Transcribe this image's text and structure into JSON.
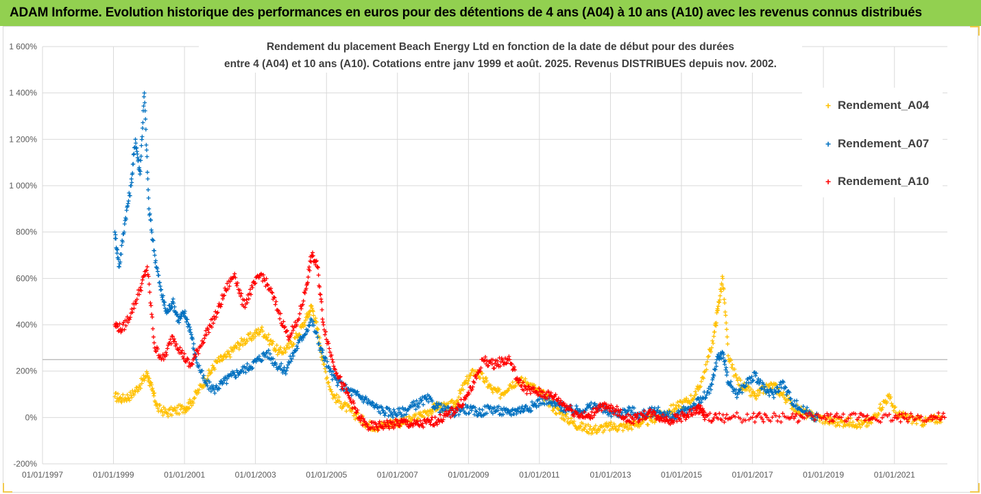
{
  "banner": {
    "text": "ADAM Informe. Evolution historique des performances en euros pour des détentions de 4 ans (A04) à 10 ans (A10) avec les revenus connus distribués"
  },
  "colors": {
    "banner_bg": "#92d050",
    "A04": "#ffc000",
    "A07": "#0070c0",
    "A10": "#ff0000",
    "grid": "#d9d9d9",
    "text": "#595959"
  },
  "chart_data": {
    "type": "scatter",
    "title_lines": [
      "Rendement du placement Beach Energy Ltd en fonction de la date de début pour des durées",
      "entre 4 (A04) et 10 ans (A10). Cotations entre janv 1999 et août. 2025. Revenus DISTRIBUES depuis nov. 2002."
    ],
    "xlabel": "",
    "ylabel": "",
    "xlim": [
      "1997-01-01",
      "2022-06-30"
    ],
    "ylim": [
      -200,
      1600
    ],
    "y_ticks": [
      -200,
      0,
      200,
      400,
      600,
      800,
      1000,
      1200,
      1400,
      1600
    ],
    "y_tick_labels": [
      "-200%",
      "0%",
      "200%",
      "400%",
      "600%",
      "800%",
      "1 000%",
      "1 200%",
      "1 400%",
      "1 600%"
    ],
    "x_ticks": [
      "1997-01-01",
      "1999-01-01",
      "2001-01-01",
      "2003-01-01",
      "2005-01-01",
      "2007-01-01",
      "2009-01-01",
      "2011-01-01",
      "2013-01-01",
      "2015-01-01",
      "2017-01-01",
      "2019-01-01",
      "2021-01-01"
    ],
    "x_tick_labels": [
      "01/01/1997",
      "01/01/1999",
      "01/01/2001",
      "01/01/2003",
      "01/01/2005",
      "01/01/2007",
      "01/01/2009",
      "01/01/2011",
      "01/01/2013",
      "01/01/2015",
      "01/01/2017",
      "01/01/2019",
      "01/01/2021"
    ],
    "reference_line_y": 250,
    "grid": true,
    "legend_position": "top-right",
    "marker": "+",
    "series": [
      {
        "name": "Rendement_A04",
        "color": "#ffc000",
        "x": [
          "1999-01-15",
          "1999-04-01",
          "1999-07-01",
          "1999-10-01",
          "1999-12-15",
          "2000-02-01",
          "2000-04-01",
          "2000-07-01",
          "2000-10-01",
          "2001-01-01",
          "2001-03-01",
          "2001-06-01",
          "2001-09-01",
          "2001-12-01",
          "2002-03-01",
          "2002-06-01",
          "2002-09-01",
          "2002-12-01",
          "2003-03-01",
          "2003-06-01",
          "2003-09-01",
          "2003-12-01",
          "2004-03-01",
          "2004-06-01",
          "2004-08-01",
          "2004-10-01",
          "2004-12-01",
          "2005-03-01",
          "2005-06-01",
          "2005-09-01",
          "2005-12-01",
          "2006-03-01",
          "2006-06-01",
          "2006-09-01",
          "2006-12-01",
          "2007-03-01",
          "2007-06-01",
          "2007-09-01",
          "2007-12-01",
          "2008-03-01",
          "2008-06-01",
          "2008-09-01",
          "2008-12-01",
          "2009-03-01",
          "2009-06-01",
          "2009-09-01",
          "2009-12-01",
          "2010-03-01",
          "2010-06-01",
          "2010-09-01",
          "2010-12-01",
          "2011-03-01",
          "2011-06-01",
          "2011-09-01",
          "2011-12-01",
          "2012-03-01",
          "2012-06-01",
          "2012-09-01",
          "2012-12-01",
          "2013-03-01",
          "2013-06-01",
          "2013-09-01",
          "2013-12-01",
          "2014-03-01",
          "2014-06-01",
          "2014-09-01",
          "2014-12-01",
          "2015-03-01",
          "2015-06-01",
          "2015-09-01",
          "2015-12-01",
          "2016-01-15",
          "2016-03-01",
          "2016-05-01",
          "2016-08-01",
          "2016-11-01",
          "2017-02-01",
          "2017-05-01",
          "2017-08-01",
          "2017-11-01",
          "2018-02-01",
          "2018-05-01",
          "2018-08-01",
          "2018-11-01",
          "2019-02-01",
          "2019-05-01",
          "2019-08-01",
          "2019-11-01",
          "2020-02-01",
          "2020-05-01",
          "2020-08-01",
          "2020-11-01",
          "2021-02-01",
          "2021-05-01",
          "2021-08-01",
          "2021-11-01",
          "2022-02-01",
          "2022-05-01"
        ],
        "y": [
          90,
          80,
          95,
          140,
          190,
          120,
          40,
          20,
          30,
          40,
          60,
          120,
          180,
          240,
          260,
          300,
          330,
          350,
          380,
          330,
          280,
          300,
          350,
          420,
          480,
          380,
          230,
          100,
          60,
          30,
          0,
          -30,
          -40,
          -30,
          -20,
          -20,
          -10,
          10,
          30,
          50,
          40,
          70,
          150,
          200,
          170,
          120,
          100,
          140,
          160,
          150,
          120,
          90,
          40,
          10,
          -20,
          -40,
          -50,
          -50,
          -40,
          -40,
          -40,
          -30,
          -20,
          -10,
          10,
          30,
          50,
          70,
          100,
          200,
          350,
          480,
          600,
          250,
          160,
          120,
          90,
          120,
          140,
          100,
          60,
          30,
          10,
          0,
          -10,
          -20,
          -20,
          -20,
          -30,
          -20,
          40,
          90,
          10,
          0,
          -10,
          -20,
          -10,
          0
        ]
      },
      {
        "name": "Rendement_A07",
        "color": "#0070c0",
        "x": [
          "1999-01-15",
          "1999-03-01",
          "1999-05-01",
          "1999-07-01",
          "1999-08-15",
          "1999-10-01",
          "1999-11-15",
          "2000-01-01",
          "2000-03-01",
          "2000-05-01",
          "2000-07-01",
          "2000-09-01",
          "2000-11-01",
          "2001-01-01",
          "2001-03-01",
          "2001-05-01",
          "2001-08-01",
          "2001-11-01",
          "2002-02-01",
          "2002-05-01",
          "2002-08-01",
          "2002-11-01",
          "2003-02-01",
          "2003-05-01",
          "2003-08-01",
          "2003-11-01",
          "2004-02-01",
          "2004-05-01",
          "2004-08-01",
          "2004-11-01",
          "2005-02-01",
          "2005-05-01",
          "2005-08-01",
          "2005-11-01",
          "2006-02-01",
          "2006-05-01",
          "2006-08-01",
          "2006-11-01",
          "2007-02-01",
          "2007-05-01",
          "2007-08-01",
          "2007-11-01",
          "2008-02-01",
          "2008-05-01",
          "2008-08-01",
          "2008-11-01",
          "2009-02-01",
          "2009-05-01",
          "2009-08-01",
          "2009-11-01",
          "2010-02-01",
          "2010-05-01",
          "2010-08-01",
          "2010-11-01",
          "2011-02-01",
          "2011-05-01",
          "2011-08-01",
          "2011-11-01",
          "2012-02-01",
          "2012-05-01",
          "2012-08-01",
          "2012-11-01",
          "2013-02-01",
          "2013-05-01",
          "2013-08-01",
          "2013-11-01",
          "2014-02-01",
          "2014-05-01",
          "2014-08-01",
          "2014-11-01",
          "2015-02-01",
          "2015-05-01",
          "2015-08-01",
          "2015-11-01",
          "2016-01-01",
          "2016-03-01",
          "2016-05-01",
          "2016-08-01",
          "2016-11-01",
          "2017-02-01",
          "2017-05-01",
          "2017-08-01",
          "2017-11-01",
          "2018-02-01",
          "2018-05-01",
          "2018-08-01",
          "2018-11-01"
        ],
        "y": [
          800,
          650,
          850,
          1000,
          1200,
          1050,
          1400,
          900,
          700,
          550,
          450,
          500,
          420,
          450,
          380,
          250,
          150,
          120,
          150,
          180,
          200,
          220,
          250,
          280,
          230,
          200,
          280,
          350,
          420,
          300,
          200,
          150,
          120,
          100,
          80,
          50,
          30,
          20,
          20,
          40,
          60,
          80,
          50,
          30,
          20,
          40,
          30,
          20,
          40,
          30,
          20,
          30,
          40,
          50,
          80,
          60,
          50,
          30,
          30,
          40,
          50,
          30,
          20,
          20,
          30,
          10,
          20,
          30,
          10,
          0,
          30,
          50,
          80,
          120,
          250,
          280,
          150,
          100,
          150,
          180,
          120,
          100,
          150,
          80,
          40,
          20,
          0
        ]
      },
      {
        "name": "Rendement_A10",
        "color": "#ff0000",
        "x": [
          "1999-01-15",
          "1999-04-01",
          "1999-07-01",
          "1999-10-01",
          "1999-12-15",
          "2000-03-01",
          "2000-06-01",
          "2000-09-01",
          "2000-12-01",
          "2001-03-01",
          "2001-06-01",
          "2001-09-01",
          "2001-12-01",
          "2002-03-01",
          "2002-06-01",
          "2002-09-01",
          "2002-12-01",
          "2003-03-01",
          "2003-06-01",
          "2003-09-01",
          "2003-12-01",
          "2004-03-01",
          "2004-06-01",
          "2004-08-01",
          "2004-10-01",
          "2004-12-01",
          "2005-03-01",
          "2005-06-01",
          "2005-09-01",
          "2005-12-01",
          "2006-03-01",
          "2006-06-01",
          "2006-09-01",
          "2006-12-01",
          "2007-03-01",
          "2007-06-01",
          "2007-09-01",
          "2007-12-01",
          "2008-03-01",
          "2008-06-01",
          "2008-09-01",
          "2008-12-01",
          "2009-03-01",
          "2009-06-01",
          "2009-09-01",
          "2009-12-01",
          "2010-03-01",
          "2010-06-01",
          "2010-09-01",
          "2010-12-01",
          "2011-03-01",
          "2011-06-01",
          "2011-09-01",
          "2011-12-01",
          "2012-03-01",
          "2012-06-01",
          "2012-09-01",
          "2012-12-01",
          "2013-03-01",
          "2013-06-01",
          "2013-09-01",
          "2013-12-01",
          "2014-03-01",
          "2014-06-01",
          "2014-09-01",
          "2014-12-01",
          "2015-03-01",
          "2015-06-01",
          "2015-07-15",
          "2015-09-01",
          "2016-01-01",
          "2016-06-01",
          "2017-01-01",
          "2017-06-01",
          "2018-01-01",
          "2018-06-01",
          "2019-01-01",
          "2019-06-01",
          "2020-01-01",
          "2020-06-01",
          "2021-01-01",
          "2021-06-01",
          "2022-01-01",
          "2022-06-01"
        ],
        "y": [
          400,
          380,
          450,
          550,
          650,
          300,
          250,
          350,
          280,
          220,
          300,
          380,
          450,
          550,
          620,
          480,
          560,
          620,
          550,
          450,
          350,
          400,
          550,
          700,
          650,
          400,
          250,
          150,
          80,
          0,
          -40,
          -40,
          -30,
          -30,
          -20,
          -30,
          -30,
          -20,
          -10,
          10,
          40,
          80,
          150,
          250,
          230,
          240,
          250,
          150,
          120,
          110,
          100,
          90,
          60,
          30,
          10,
          0,
          50,
          40,
          30,
          0,
          -10,
          10,
          20,
          0,
          -10,
          0,
          10,
          30,
          40,
          0,
          0,
          0,
          0,
          0,
          0,
          0,
          0,
          0,
          0,
          0,
          0,
          0,
          0,
          0
        ]
      }
    ]
  }
}
